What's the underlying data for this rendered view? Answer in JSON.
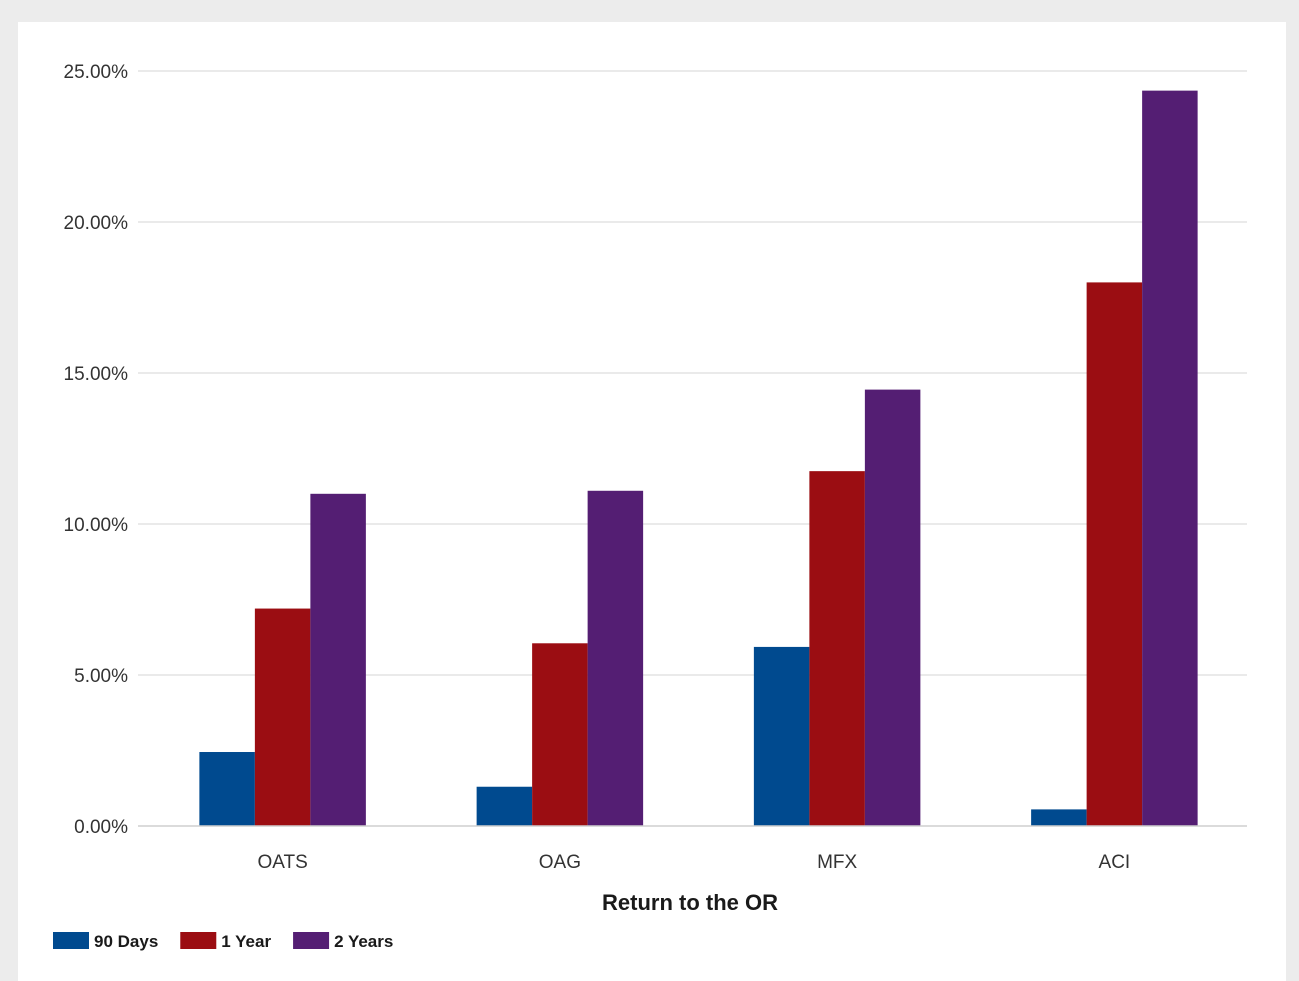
{
  "chart_data": {
    "type": "bar",
    "title": "",
    "xlabel": "Return to the OR",
    "ylabel": "",
    "categories": [
      "OATS",
      "OAG",
      "MFX",
      "ACI"
    ],
    "series": [
      {
        "name": "90 Days",
        "color": "#004a8f",
        "values": [
          2.45,
          1.3,
          5.93,
          0.55
        ]
      },
      {
        "name": "1 Year",
        "color": "#9b0d12",
        "values": [
          7.2,
          6.05,
          11.75,
          18.0
        ]
      },
      {
        "name": "2 Years",
        "color": "#541e73",
        "values": [
          11.0,
          11.1,
          14.45,
          24.35
        ]
      }
    ],
    "ylim": [
      0,
      25
    ],
    "yticks": [
      0,
      5,
      10,
      15,
      20,
      25
    ],
    "ytick_labels": [
      "0.00%",
      "5.00%",
      "10.00%",
      "15.00%",
      "20.00%",
      "25.00%"
    ],
    "grid": true,
    "legend_position": "bottom-left"
  }
}
